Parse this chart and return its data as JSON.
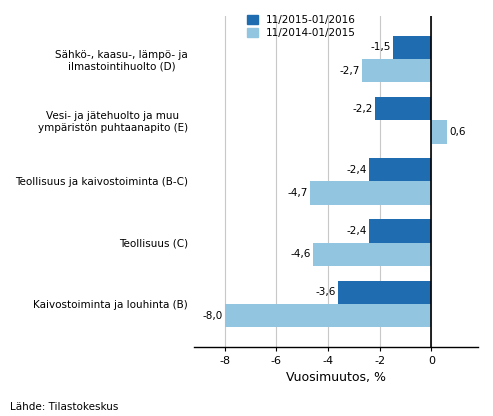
{
  "categories": [
    "Kaivostoiminta ja louhinta (B)",
    "Teollisuus (C)",
    "Teollisuus ja kaivostoiminta (B-C)",
    "Vesi- ja jätehuolto ja muu\nympäristön puhtaanapito (E)",
    "Sähkö-, kaasu-, lämpö- ja\nilmastointihuolto (D)"
  ],
  "series1_label": "11/2015-01/2016",
  "series2_label": "11/2014-01/2015",
  "series1_values": [
    -3.6,
    -2.4,
    -2.4,
    -2.2,
    -1.5
  ],
  "series2_values": [
    -8.0,
    -4.6,
    -4.7,
    0.6,
    -2.7
  ],
  "series1_labels": [
    "-3,6",
    "-2,4",
    "-2,4",
    "-2,2",
    "-1,5"
  ],
  "series2_labels": [
    "-8,0",
    "-4,6",
    "-4,7",
    "0,6",
    "-2,7"
  ],
  "series1_color": "#1F6CB0",
  "series2_color": "#92C5E0",
  "xlabel": "Vuosimuutos, %",
  "xlim": [
    -9.2,
    1.8
  ],
  "xticks": [
    -8,
    -6,
    -4,
    -2,
    0
  ],
  "bar_height": 0.38,
  "footnote": "Lähde: Tilastokeskus",
  "grid_color": "#C8C8C8",
  "background_color": "#FFFFFF"
}
